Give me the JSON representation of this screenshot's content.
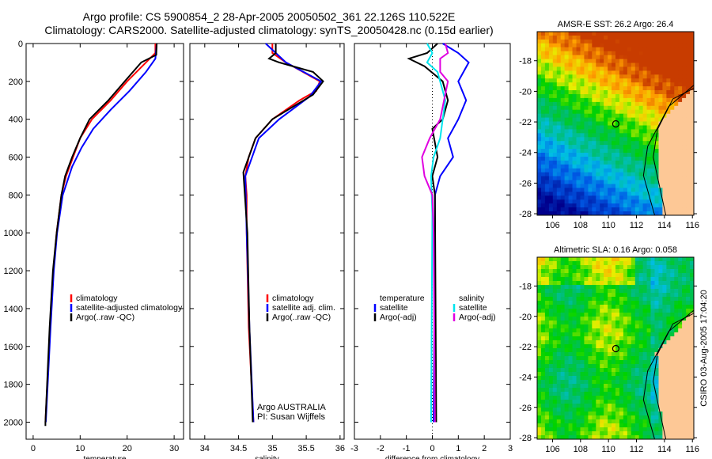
{
  "title_line1": "Argo profile: CS 5900854_2 28-Apr-2005 20050502_361 22.126S 110.522E",
  "title_line2": "Climatology: CARS2000. Satellite-adjusted climatology: synTS_20050428.nc (0.15d earlier)",
  "side_label": "CSIRO 03-Aug-2005 17:04:20",
  "credit": [
    "Argo AUSTRALIA",
    "PI: Susan Wijffels"
  ],
  "colors": {
    "red": "#ff0000",
    "blue": "#0000ff",
    "black": "#000000",
    "cyan": "#00e5ee",
    "magenta": "#e000e0"
  },
  "chart_data": [
    {
      "type": "line",
      "id": "temperature",
      "xlabel": "temperature",
      "ylabel": "",
      "xlim": [
        -1.5,
        32
      ],
      "ylim": [
        2090,
        0
      ],
      "xticks": [
        0,
        10,
        20,
        30
      ],
      "yticks": [
        0,
        200,
        400,
        600,
        800,
        1000,
        1200,
        1400,
        1600,
        1800,
        2000
      ],
      "legend": [
        "climatology",
        "satellite-adjusted climatology",
        "Argo(..raw -QC)"
      ],
      "series": [
        {
          "name": "climatology",
          "color": "red",
          "depth": [
            0,
            50,
            100,
            200,
            300,
            400,
            500,
            600,
            700,
            800,
            1000,
            1200,
            1500,
            2000
          ],
          "values": [
            26,
            26,
            24,
            20,
            16.5,
            12.5,
            10,
            8.5,
            7,
            6,
            5,
            4.3,
            3.6,
            2.6
          ]
        },
        {
          "name": "satellite-adjusted climatology",
          "color": "blue",
          "depth": [
            0,
            80,
            150,
            250,
            350,
            450,
            550,
            650,
            800,
            1000,
            1200,
            1500,
            2000
          ],
          "values": [
            26.3,
            26,
            24,
            20.5,
            16.5,
            12.8,
            10.3,
            8.3,
            6.3,
            5.1,
            4.4,
            3.7,
            2.7
          ]
        },
        {
          "name": "Argo(..raw -QC)",
          "color": "black",
          "depth": [
            0,
            60,
            100,
            200,
            300,
            400,
            500,
            600,
            700,
            800,
            1000,
            1200,
            1500,
            2000,
            2020
          ],
          "values": [
            26.3,
            26.2,
            23,
            19.5,
            16,
            12,
            10,
            8.3,
            6.8,
            6,
            5,
            4.2,
            3.5,
            2.6,
            2.6
          ]
        }
      ]
    },
    {
      "type": "line",
      "id": "salinity",
      "xlabel": "salinity",
      "xlim": [
        33.78,
        36.06
      ],
      "ylim": [
        2090,
        0
      ],
      "xticks": [
        34,
        34.5,
        35,
        35.5,
        36
      ],
      "legend": [
        "climatology",
        "satellite adj. clim.",
        "Argo(..raw -QC)"
      ],
      "series": [
        {
          "name": "climatology",
          "color": "red",
          "depth": [
            0,
            50,
            100,
            200,
            250,
            300,
            400,
            500,
            600,
            700,
            800,
            1000,
            1500,
            2000
          ],
          "values": [
            35.0,
            35.0,
            35.2,
            35.7,
            35.65,
            35.4,
            35.0,
            34.75,
            34.65,
            34.6,
            34.62,
            34.62,
            34.65,
            34.72
          ]
        },
        {
          "name": "satellite adj. clim.",
          "color": "blue",
          "depth": [
            0,
            100,
            200,
            280,
            400,
            500,
            700,
            1000,
            1500,
            2000
          ],
          "values": [
            34.9,
            35.2,
            35.72,
            35.55,
            35.1,
            34.8,
            34.6,
            34.62,
            34.66,
            34.72
          ]
        },
        {
          "name": "Argo(..raw -QC)",
          "color": "black",
          "depth": [
            0,
            50,
            80,
            100,
            150,
            200,
            270,
            400,
            500,
            680,
            1000,
            1500,
            2000
          ],
          "values": [
            35.05,
            35.05,
            34.95,
            35.1,
            35.6,
            35.75,
            35.6,
            35.0,
            34.75,
            34.57,
            34.63,
            34.66,
            34.71
          ]
        }
      ]
    },
    {
      "type": "line",
      "id": "difference",
      "xlabel": "difference from climatology",
      "xlim": [
        -3,
        3
      ],
      "ylim": [
        2090,
        0
      ],
      "xticks": [
        -3,
        -2,
        -1,
        0,
        1,
        2,
        3
      ],
      "legend_temperature": {
        "title": "temperature",
        "items": [
          "satellite",
          "Argo(-adj)"
        ]
      },
      "legend_salinity": {
        "title": "salinity",
        "items": [
          "satellite",
          "Argo(-adj)"
        ]
      },
      "series": [
        {
          "name": "temperature satellite",
          "color": "blue",
          "depth": [
            0,
            50,
            100,
            200,
            300,
            400,
            500,
            600,
            700,
            800,
            1000,
            2000
          ],
          "values": [
            0.4,
            1.0,
            1.4,
            1.0,
            1.3,
            1.0,
            0.6,
            0.8,
            0.3,
            0.1,
            0.1,
            0.05
          ]
        },
        {
          "name": "temperature Argo(-adj)",
          "color": "black",
          "depth": [
            0,
            50,
            80,
            120,
            200,
            300,
            400,
            450,
            600,
            700,
            800,
            2000
          ],
          "values": [
            0.2,
            -0.2,
            -0.9,
            -0.3,
            0.4,
            0.6,
            0.4,
            0,
            0.2,
            0,
            0.1,
            0.15
          ]
        },
        {
          "name": "salinity satellite",
          "color": "cyan",
          "depth": [
            0,
            50,
            100,
            150,
            300,
            400,
            500,
            600,
            700,
            900,
            2000
          ],
          "values": [
            -0.2,
            0,
            -0.2,
            0.2,
            0.5,
            0.4,
            0.3,
            0.05,
            -0.05,
            0,
            -0.05
          ]
        },
        {
          "name": "salinity Argo(-adj)",
          "color": "magenta",
          "depth": [
            0,
            50,
            80,
            150,
            200,
            400,
            500,
            600,
            700,
            800,
            1000,
            2000
          ],
          "values": [
            0.5,
            0.6,
            0.3,
            0.3,
            0.6,
            0.3,
            -0.1,
            -0.4,
            -0.3,
            0,
            0.05,
            0.1
          ]
        }
      ]
    },
    {
      "type": "heatmap",
      "id": "sst-map",
      "title": "AMSR-E SST: 26.2 Argo: 26.4",
      "xlim": [
        104.9,
        116.1
      ],
      "ylim": [
        -28.1,
        -16.1
      ],
      "xticks": [
        106,
        108,
        110,
        112,
        114,
        116
      ],
      "yticks": [
        -18,
        -20,
        -22,
        -24,
        -26,
        -28
      ],
      "marker": {
        "lon": 110.522,
        "lat": -22.126
      }
    },
    {
      "type": "heatmap",
      "id": "sla-map",
      "title": "Altimetric SLA: 0.16 Argo: 0.058",
      "xlim": [
        104.9,
        116.1
      ],
      "ylim": [
        -28.1,
        -16.1
      ],
      "xticks": [
        106,
        108,
        110,
        112,
        114,
        116
      ],
      "yticks": [
        -18,
        -20,
        -22,
        -24,
        -26,
        -28
      ],
      "marker": {
        "lon": 110.522,
        "lat": -22.126
      }
    }
  ]
}
